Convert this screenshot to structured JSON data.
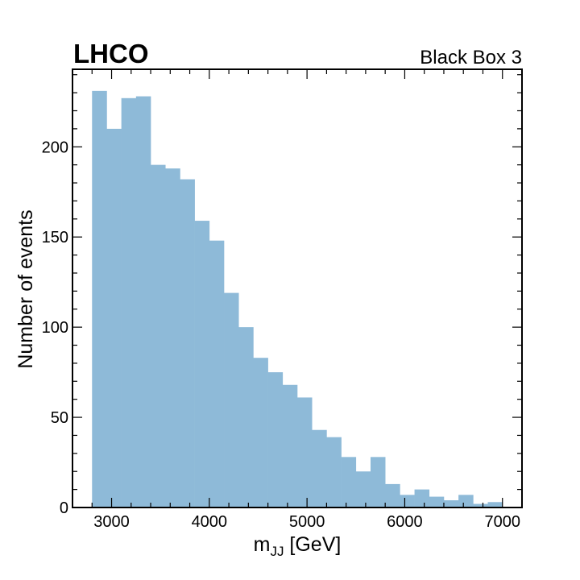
{
  "chart_data": {
    "type": "bar",
    "title_left": "LHCO",
    "title_right": "Black Box 3",
    "xlabel_main": "m",
    "xlabel_sub": "JJ",
    "xlabel_unit": " [GeV]",
    "ylabel": "Number of events",
    "xlim": [
      2600,
      7200
    ],
    "ylim": [
      0,
      243
    ],
    "xticks": [
      3000,
      4000,
      5000,
      6000,
      7000
    ],
    "yticks": [
      0,
      50,
      100,
      150,
      200
    ],
    "bin_start": 2800,
    "bin_width": 150,
    "values": [
      231,
      210,
      227,
      228,
      190,
      188,
      182,
      159,
      148,
      119,
      100,
      83,
      75,
      68,
      61,
      43,
      39,
      28,
      20,
      28,
      13,
      7,
      10,
      6,
      4,
      7,
      2,
      3
    ],
    "bar_color": "#8ebad8",
    "legend": "none",
    "grid": false
  }
}
